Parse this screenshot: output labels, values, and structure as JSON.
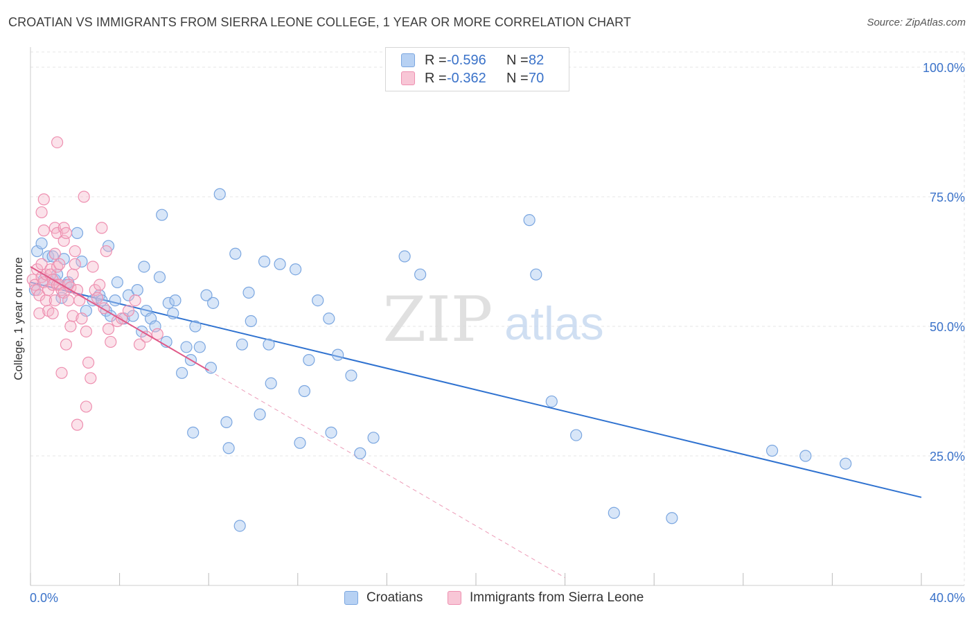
{
  "title": "CROATIAN VS IMMIGRANTS FROM SIERRA LEONE COLLEGE, 1 YEAR OR MORE CORRELATION CHART",
  "source": "Source: ZipAtlas.com",
  "watermark": {
    "zip": "ZIP",
    "atlas": "atlas"
  },
  "legend": [
    {
      "r_label": "R =",
      "r_value": "-0.596",
      "n_label": "N =",
      "n_value": "82"
    },
    {
      "r_label": "R =",
      "r_value": "-0.362",
      "n_label": "N =",
      "n_value": "70"
    }
  ],
  "colors": {
    "blue_fill": "#a9c8f0",
    "blue_stroke": "#7aa6e0",
    "blue_line": "#2f72d0",
    "pink_fill": "#f5b7cb",
    "pink_stroke": "#ee8fb0",
    "pink_line": "#e05a88",
    "axis_text": "#3a72c9",
    "grid": "#e6e6e6"
  },
  "chart_data": {
    "type": "scatter",
    "title": "CROATIAN VS IMMIGRANTS FROM SIERRA LEONE COLLEGE, 1 YEAR OR MORE CORRELATION CHART",
    "xlabel": "",
    "ylabel": "College, 1 year or more",
    "xlim": [
      0,
      40
    ],
    "ylim": [
      0,
      100
    ],
    "x_tick_labels": [
      "0.0%",
      "40.0%"
    ],
    "y_ticks": [
      25,
      50,
      75,
      100
    ],
    "y_tick_labels": [
      "25.0%",
      "50.0%",
      "75.0%",
      "100.0%"
    ],
    "grid": true,
    "series": [
      {
        "name": "Croatians",
        "r": -0.596,
        "n": 82,
        "trend": {
          "x": [
            0,
            40
          ],
          "y": [
            58.5,
            17
          ]
        },
        "points": [
          [
            0.3,
            64.5
          ],
          [
            0.5,
            66
          ],
          [
            0.6,
            59
          ],
          [
            0.8,
            63.5
          ],
          [
            1,
            63.5
          ],
          [
            1.1,
            59
          ],
          [
            1.2,
            60
          ],
          [
            1.4,
            55.5
          ],
          [
            1.5,
            63
          ],
          [
            1.6,
            58
          ],
          [
            1.7,
            58.5
          ],
          [
            2.1,
            68
          ],
          [
            2.3,
            62.5
          ],
          [
            2.5,
            53
          ],
          [
            2.8,
            55
          ],
          [
            3.1,
            56
          ],
          [
            3.2,
            55
          ],
          [
            3.4,
            53
          ],
          [
            3.5,
            65.5
          ],
          [
            3.6,
            52
          ],
          [
            3.8,
            55
          ],
          [
            3.9,
            58.5
          ],
          [
            4.2,
            51.5
          ],
          [
            4.4,
            56
          ],
          [
            4.6,
            52
          ],
          [
            4.8,
            57
          ],
          [
            5,
            49
          ],
          [
            5.1,
            61.5
          ],
          [
            5.2,
            53
          ],
          [
            5.4,
            51.5
          ],
          [
            5.6,
            50
          ],
          [
            5.8,
            59.5
          ],
          [
            5.9,
            71.5
          ],
          [
            6.1,
            47
          ],
          [
            6.2,
            54.5
          ],
          [
            6.4,
            52.5
          ],
          [
            6.5,
            55
          ],
          [
            6.8,
            41
          ],
          [
            7,
            46
          ],
          [
            7.2,
            43.5
          ],
          [
            7.3,
            29.5
          ],
          [
            7.4,
            50
          ],
          [
            7.6,
            46
          ],
          [
            7.9,
            56
          ],
          [
            8.1,
            42
          ],
          [
            8.2,
            54.5
          ],
          [
            8.5,
            75.5
          ],
          [
            8.8,
            31.5
          ],
          [
            8.9,
            26.5
          ],
          [
            9.2,
            64
          ],
          [
            9.4,
            11.5
          ],
          [
            9.5,
            46.5
          ],
          [
            9.8,
            56.5
          ],
          [
            9.9,
            51
          ],
          [
            10.3,
            33
          ],
          [
            10.5,
            62.5
          ],
          [
            10.7,
            46.5
          ],
          [
            10.8,
            39
          ],
          [
            11.2,
            62
          ],
          [
            11.9,
            61
          ],
          [
            12.1,
            27.5
          ],
          [
            12.3,
            37.5
          ],
          [
            12.5,
            43.5
          ],
          [
            12.9,
            55
          ],
          [
            13.4,
            51.5
          ],
          [
            13.5,
            29.5
          ],
          [
            13.8,
            44.5
          ],
          [
            14.4,
            40.5
          ],
          [
            14.8,
            25.5
          ],
          [
            15.4,
            28.5
          ],
          [
            16.8,
            63.5
          ],
          [
            17.5,
            60
          ],
          [
            22.4,
            70.5
          ],
          [
            22.7,
            60
          ],
          [
            23.4,
            35.5
          ],
          [
            24.5,
            29
          ],
          [
            26.2,
            14
          ],
          [
            28.8,
            13
          ],
          [
            33.3,
            26
          ],
          [
            34.8,
            25
          ],
          [
            36.6,
            23.5
          ],
          [
            0.2,
            57
          ]
        ]
      },
      {
        "name": "Immigrants from Sierra Leone",
        "r": -0.362,
        "n": 70,
        "trend": {
          "x": [
            0,
            8
          ],
          "y": [
            61.5,
            41.5
          ]
        },
        "trend_extension": {
          "x": [
            8,
            24
          ],
          "y": [
            41.5,
            1.5
          ]
        },
        "points": [
          [
            0.1,
            59
          ],
          [
            0.2,
            58
          ],
          [
            0.3,
            61
          ],
          [
            0.3,
            57
          ],
          [
            0.4,
            52.5
          ],
          [
            0.4,
            56
          ],
          [
            0.5,
            62
          ],
          [
            0.5,
            59.5
          ],
          [
            0.5,
            72
          ],
          [
            0.6,
            68.5
          ],
          [
            0.6,
            58.5
          ],
          [
            0.6,
            74.5
          ],
          [
            0.7,
            55
          ],
          [
            0.7,
            60
          ],
          [
            0.8,
            53
          ],
          [
            0.8,
            57
          ],
          [
            0.9,
            61
          ],
          [
            0.9,
            60
          ],
          [
            1,
            59
          ],
          [
            1,
            58
          ],
          [
            1,
            52.5
          ],
          [
            1.1,
            64
          ],
          [
            1.1,
            55
          ],
          [
            1.1,
            69
          ],
          [
            1.2,
            68
          ],
          [
            1.2,
            58
          ],
          [
            1.2,
            61.5
          ],
          [
            1.2,
            85.5
          ],
          [
            1.3,
            58
          ],
          [
            1.3,
            62
          ],
          [
            1.4,
            41
          ],
          [
            1.4,
            57
          ],
          [
            1.5,
            69
          ],
          [
            1.5,
            66.5
          ],
          [
            1.5,
            56.5
          ],
          [
            1.6,
            68
          ],
          [
            1.6,
            46.5
          ],
          [
            1.7,
            58
          ],
          [
            1.7,
            55
          ],
          [
            1.8,
            50
          ],
          [
            1.8,
            57.5
          ],
          [
            1.9,
            60
          ],
          [
            1.9,
            52
          ],
          [
            2,
            64.5
          ],
          [
            2,
            62
          ],
          [
            2.1,
            31
          ],
          [
            2.1,
            57
          ],
          [
            2.2,
            55
          ],
          [
            2.3,
            51.5
          ],
          [
            2.4,
            75
          ],
          [
            2.5,
            34.5
          ],
          [
            2.5,
            49
          ],
          [
            2.6,
            43
          ],
          [
            2.7,
            40
          ],
          [
            2.8,
            61.5
          ],
          [
            2.9,
            57
          ],
          [
            3,
            55.5
          ],
          [
            3.1,
            58
          ],
          [
            3.2,
            69
          ],
          [
            3.3,
            53.5
          ],
          [
            3.4,
            64.5
          ],
          [
            3.5,
            49.5
          ],
          [
            3.6,
            47
          ],
          [
            3.9,
            51
          ],
          [
            4.1,
            51.5
          ],
          [
            4.4,
            53
          ],
          [
            4.7,
            55
          ],
          [
            4.9,
            46.5
          ],
          [
            5.2,
            48
          ],
          [
            5.7,
            48.5
          ]
        ]
      }
    ]
  }
}
